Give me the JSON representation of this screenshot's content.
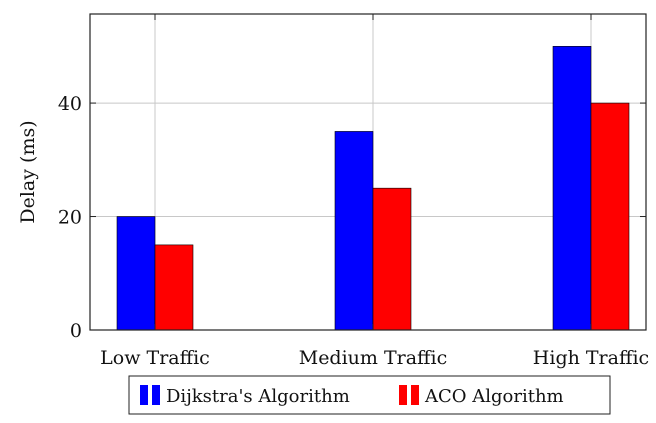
{
  "chart_data": {
    "type": "bar",
    "categories": [
      "Low Traffic",
      "Medium Traffic",
      "High Traffic"
    ],
    "series": [
      {
        "name": "Dijkstra's Algorithm",
        "values": [
          20,
          35,
          50
        ],
        "color": "#0000ff"
      },
      {
        "name": "ACO Algorithm",
        "values": [
          15,
          25,
          40
        ],
        "color": "#ff0000"
      }
    ],
    "title": "",
    "xlabel": "",
    "ylabel": "Delay (ms)",
    "ylim": [
      0,
      55.7
    ],
    "yticks": [
      0,
      20,
      40
    ],
    "grid": true,
    "legend_position": "bottom-center"
  }
}
